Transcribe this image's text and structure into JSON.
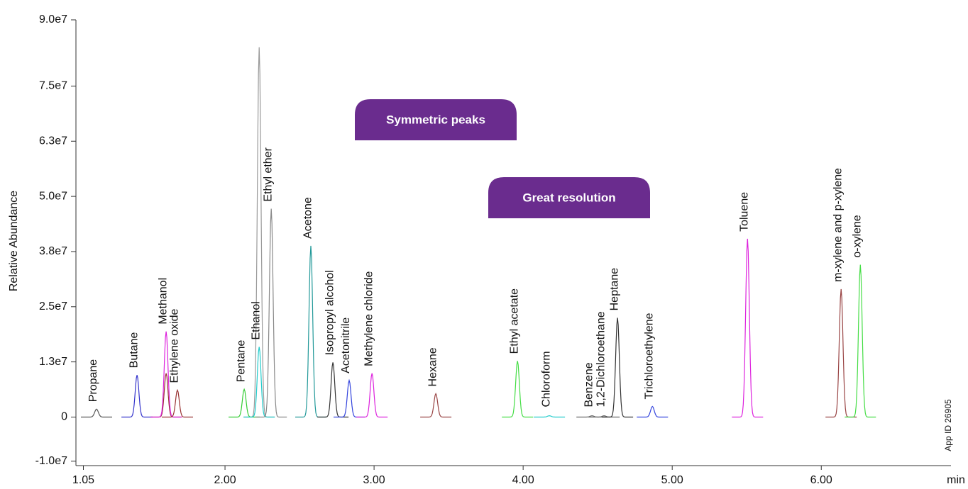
{
  "chart_data": {
    "type": "chromatogram",
    "y_label": "Relative Abundance",
    "x_label": "min",
    "side_note": "App ID 26905",
    "annotations": [
      "Symmetric peaks",
      "Great resolution"
    ],
    "annotation_color": "#6a2c8e",
    "xlim": [
      1.0,
      6.87
    ],
    "ylim": [
      -11000000,
      90000000
    ],
    "xticks": [
      {
        "value": 1.05,
        "label": "1.05"
      },
      {
        "value": 2,
        "label": "2.00"
      },
      {
        "value": 3,
        "label": "3.00"
      },
      {
        "value": 4,
        "label": "4.00"
      },
      {
        "value": 5,
        "label": "5.00"
      },
      {
        "value": 6,
        "label": "6.00"
      }
    ],
    "yticks": [
      {
        "value": 90000000,
        "label": "9.0e7"
      },
      {
        "value": 75000000,
        "label": "7.5e7"
      },
      {
        "value": 62500000,
        "label": "6.3e7"
      },
      {
        "value": 50000000,
        "label": "5.0e7"
      },
      {
        "value": 37500000,
        "label": "3.8e7"
      },
      {
        "value": 25000000,
        "label": "2.5e7"
      },
      {
        "value": 12500000,
        "label": "1.3e7"
      },
      0,
      {
        "value": -10000000,
        "label": "-1.0e7"
      }
    ],
    "peaks": [
      {
        "name": "Propane",
        "color": "#555555",
        "rt": 1.138,
        "height": 1800000
      },
      {
        "name": "Butane",
        "color": "#3333cc",
        "rt": 1.41,
        "height": 9500000
      },
      {
        "name": "Methanol",
        "color": "#dd22dd",
        "rt": 1.605,
        "height": 19400000
      },
      {
        "name": "Ethylene oxide",
        "color": "#993333",
        "rt": 1.681,
        "height": 6100000
      },
      {
        "name": "Pentane",
        "color": "#33cc33",
        "rt": 2.129,
        "height": 6300000
      },
      {
        "name": "Ethanol",
        "color": "#22cccc",
        "rt": 2.229,
        "height": 15900000
      },
      {
        "name": "Ethyl ether",
        "color": "#888888",
        "rt": 2.31,
        "height": 47200000
      },
      {
        "name": "Acetone",
        "color": "#229999",
        "rt": 2.576,
        "height": 38800000
      },
      {
        "name": "Isopropyl alcohol",
        "color": "#333333",
        "rt": 2.724,
        "height": 12400000
      },
      {
        "name": "Acetonitrile",
        "color": "#3344dd",
        "rt": 2.833,
        "height": 8300000
      },
      {
        "name": "Methylene chloride",
        "color": "#dd22dd",
        "rt": 2.986,
        "height": 9900000
      },
      {
        "name": "Hexane",
        "color": "#994444",
        "rt": 3.414,
        "height": 5300000
      },
      {
        "name": "Ethyl acetate",
        "color": "#44dd44",
        "rt": 3.962,
        "height": 12700000
      },
      {
        "name": "Chloroform",
        "color": "#22cccc",
        "rt": 4.176,
        "height": 300000
      },
      {
        "name": "Benzene",
        "color": "#666666",
        "rt": 4.462,
        "height": 300000
      },
      {
        "name": "1,2-Dichloroethane",
        "color": "#666666",
        "rt": 4.543,
        "height": 300000
      },
      {
        "name": "Heptane",
        "color": "#333333",
        "rt": 4.633,
        "height": 22500000
      },
      {
        "name": "Trichloroethylene",
        "color": "#3344dd",
        "rt": 4.867,
        "height": 2400000
      },
      {
        "name": "Toluene",
        "color": "#dd22dd",
        "rt": 5.505,
        "height": 40400000
      },
      {
        "name": "m-xylene and p-xylene",
        "color": "#994444",
        "rt": 6.133,
        "height": 29000000
      },
      {
        "name": "o-xylene",
        "color": "#44dd44",
        "rt": 6.262,
        "height": 34500000
      }
    ],
    "unlabeled_peaks": [
      {
        "color": "#999999",
        "rt": 2.229,
        "height": 83800000
      },
      {
        "color": "#993333",
        "rt": 1.605,
        "height": 9900000
      }
    ]
  }
}
